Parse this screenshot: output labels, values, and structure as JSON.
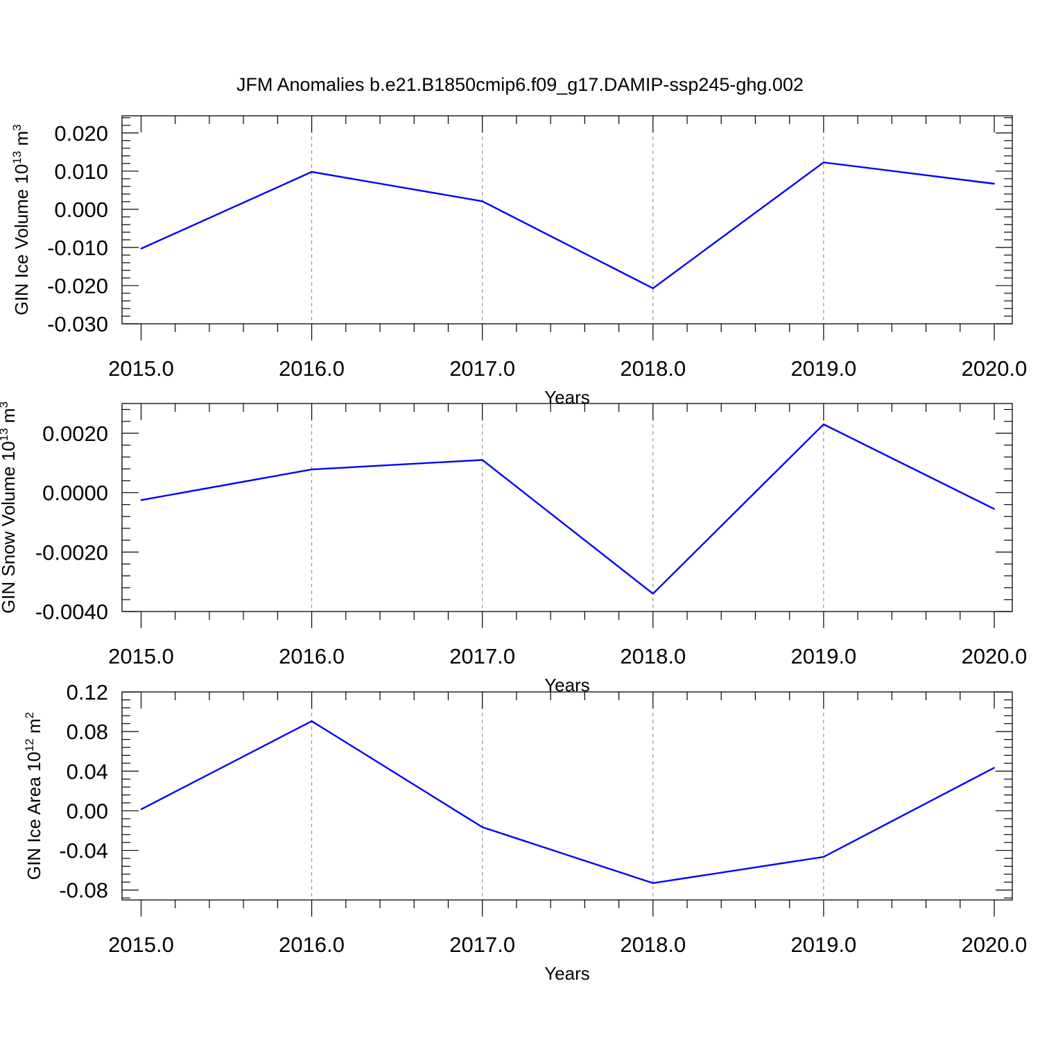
{
  "figure": {
    "title": "JFM Anomalies b.e21.B1850cmip6.f09_g17.DAMIP-ssp245-ghg.002"
  },
  "colors": {
    "line": "#0000ff",
    "axes": "#000000",
    "grid": "#808080"
  },
  "chart_data": [
    {
      "type": "line",
      "ylabel": {
        "prefix": "GIN Ice Volume 10",
        "exp": "13",
        "unit": " m",
        "unit_exp": "3"
      },
      "xlabel": "Years",
      "x": [
        2015,
        2016,
        2017,
        2018,
        2019,
        2020
      ],
      "x_ticks": [
        "2015.0",
        "2016.0",
        "2017.0",
        "2018.0",
        "2019.0",
        "2020.0"
      ],
      "xlim": [
        2014.89,
        2020.1
      ],
      "y_ticks": [
        0.02,
        0.01,
        0.0,
        -0.01,
        -0.02,
        -0.03
      ],
      "y_tick_labels": [
        "0.020",
        "0.010",
        "0.000",
        "-0.010",
        "-0.020",
        "-0.030"
      ],
      "ylim": [
        -0.03,
        0.0245
      ],
      "y_minor_step": 0.002,
      "vertical_grid": true,
      "series": [
        {
          "values": [
            -0.0103,
            0.0098,
            0.0021,
            -0.0207,
            0.0123,
            0.0067
          ]
        }
      ]
    },
    {
      "type": "line",
      "ylabel": {
        "prefix": "GIN Snow Volume 10",
        "exp": "13",
        "unit": " m",
        "unit_exp": "3"
      },
      "xlabel": "Years",
      "x": [
        2015,
        2016,
        2017,
        2018,
        2019,
        2020
      ],
      "x_ticks": [
        "2015.0",
        "2016.0",
        "2017.0",
        "2018.0",
        "2019.0",
        "2020.0"
      ],
      "xlim": [
        2014.89,
        2020.1
      ],
      "y_ticks": [
        0.002,
        0.0,
        -0.002,
        -0.004
      ],
      "y_tick_labels": [
        "0.0020",
        "0.0000",
        "-0.0020",
        "-0.0040"
      ],
      "ylim": [
        -0.004,
        0.003
      ],
      "y_minor_step": 0.0004,
      "vertical_grid": true,
      "series": [
        {
          "values": [
            -0.00025,
            0.00078,
            0.0011,
            -0.0034,
            0.0023,
            -0.00055
          ]
        }
      ]
    },
    {
      "type": "line",
      "ylabel": {
        "prefix": "GIN Ice Area 10",
        "exp": "12",
        "unit": " m",
        "unit_exp": "2"
      },
      "xlabel": "Years",
      "x": [
        2015,
        2016,
        2017,
        2018,
        2019,
        2020
      ],
      "x_ticks": [
        "2015.0",
        "2016.0",
        "2017.0",
        "2018.0",
        "2019.0",
        "2020.0"
      ],
      "xlim": [
        2014.89,
        2020.1
      ],
      "y_ticks": [
        0.12,
        0.08,
        0.04,
        0.0,
        -0.04,
        -0.08
      ],
      "y_tick_labels": [
        "0.12",
        "0.08",
        "0.04",
        "0.00",
        "-0.04",
        "-0.08"
      ],
      "ylim": [
        -0.09,
        0.12
      ],
      "y_minor_step": 0.008,
      "vertical_grid": true,
      "series": [
        {
          "values": [
            0.0015,
            0.0905,
            -0.0165,
            -0.073,
            -0.0465,
            0.0435
          ]
        }
      ]
    }
  ]
}
